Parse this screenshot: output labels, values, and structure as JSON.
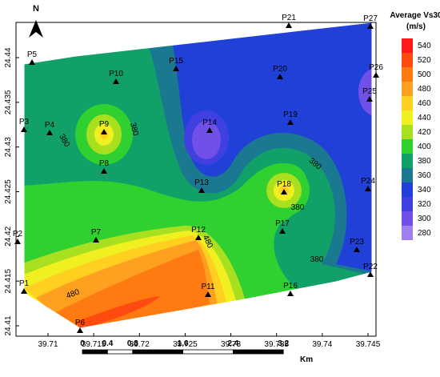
{
  "map": {
    "north": "N",
    "xticks": [
      39.71,
      39.715,
      39.72,
      39.725,
      39.73,
      39.735,
      39.74,
      39.745
    ],
    "yticks": [
      24.41,
      24.415,
      24.42,
      24.425,
      24.43,
      24.435,
      24.44
    ],
    "stations": [
      "P1",
      "P2",
      "P3",
      "P4",
      "P5",
      "P6",
      "P7",
      "P8",
      "P9",
      "P10",
      "P11",
      "P12",
      "P13",
      "P14",
      "P15",
      "P16",
      "P17",
      "P18",
      "P19",
      "P20",
      "P21",
      "P22",
      "P23",
      "P24",
      "P25",
      "P26",
      "P27"
    ],
    "contour_labels": [
      380,
      380,
      380,
      380,
      380,
      480,
      480
    ],
    "colorbar": {
      "title": "Average Vs30",
      "unit": "(m/s)",
      "labels": [
        540,
        520,
        500,
        480,
        460,
        440,
        420,
        400,
        380,
        360,
        340,
        320,
        300,
        280
      ],
      "colors": [
        "#ff1a1a",
        "#ff4a10",
        "#ff7a10",
        "#ffa020",
        "#ffd020",
        "#f0f020",
        "#a8e020",
        "#30d030",
        "#10a068",
        "#1a7890",
        "#2040d8",
        "#4040e0",
        "#7050e8",
        "#a080f0"
      ]
    },
    "scale": {
      "labels": [
        0,
        0.4,
        0.8,
        1.6,
        2.4,
        3.2
      ],
      "unit": "Km"
    }
  }
}
